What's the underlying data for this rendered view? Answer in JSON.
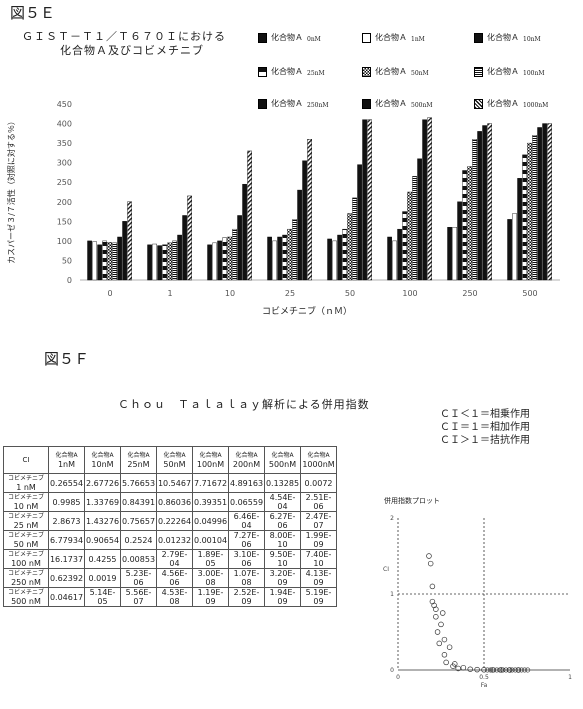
{
  "fig5e": {
    "label": "図５Ｅ",
    "title_line1": "ＧＩＳＴ－Ｔ１／Ｔ６７０Ｉにおける",
    "title_line2": "化合物Ａ及びコビメチニブ",
    "ylabel": "カスパーゼ３/７活性（対照に対する％）",
    "xlabel": "コビメチニブ（ｎＭ）"
  },
  "fig5f": {
    "label": "図５Ｆ",
    "title": "Ｃｈｏｕ　Ｔａｌａｌａｙ解析による併用指数",
    "legend": [
      "ＣＩ＜１＝相乗作用",
      "ＣＩ＝１＝相加作用",
      "ＣＩ＞１＝拮抗作用"
    ],
    "plot_title": "併用指数プロット",
    "plot_xlabel": "Fa",
    "plot_ylabel": "CI",
    "plot_ticks_x": [
      "0",
      "0.5",
      "1"
    ],
    "plot_ticks_y": [
      "0",
      "1",
      "2"
    ]
  },
  "table": {
    "corner": "CI",
    "col_drug": "化合物A",
    "cols": [
      "1nM",
      "10nM",
      "25nM",
      "50nM",
      "100nM",
      "200nM",
      "500nM",
      "1000nM"
    ],
    "row_drug": "コビメチニブ",
    "rows": [
      {
        "label": "1 nM",
        "values": [
          "0.26554",
          "2.67726",
          "5.76653",
          "10.5467",
          "7.71672",
          "4.89163",
          "0.13285",
          "0.0072"
        ]
      },
      {
        "label": "10 nM",
        "values": [
          "0.9985",
          "1.33769",
          "0.84391",
          "0.86036",
          "0.39351",
          "0.06559",
          "4.54E-04",
          "2.51E-06"
        ]
      },
      {
        "label": "25 nM",
        "values": [
          "2.8673",
          "1.43276",
          "0.75657",
          "0.22264",
          "0.04996",
          "6.46E-04",
          "6.27E-06",
          "2.47E-07"
        ]
      },
      {
        "label": "50 nM",
        "values": [
          "6.77934",
          "0.90654",
          "0.2524",
          "0.01232",
          "0.00104",
          "7.27E-06",
          "8.00E-10",
          "1.99E-09"
        ]
      },
      {
        "label": "100 nM",
        "values": [
          "16.1737",
          "0.4255",
          "0.00853",
          "2.79E-04",
          "1.89E-05",
          "3.10E-06",
          "9.50E-10",
          "7.40E-10"
        ]
      },
      {
        "label": "250 nM",
        "values": [
          "0.62392",
          "0.0019",
          "5.23E-06",
          "4.56E-06",
          "3.00E-08",
          "1.07E-08",
          "3.20E-09",
          "4.13E-09"
        ]
      },
      {
        "label": "500 nM",
        "values": [
          "0.04617",
          "5.14E-05",
          "5.56E-07",
          "4.53E-08",
          "1.19E-09",
          "2.52E-09",
          "1.94E-09",
          "5.19E-09"
        ]
      }
    ]
  },
  "chart_data": [
    {
      "type": "bar",
      "ylim": [
        0,
        450
      ],
      "yticks": [
        "0",
        "50",
        "100",
        "150",
        "200",
        "250",
        "300",
        "350",
        "400",
        "450"
      ],
      "categories": [
        "0",
        "1",
        "10",
        "25",
        "50",
        "100",
        "250",
        "500"
      ],
      "legend_placement": "top-right",
      "legend_prefix": "化合物Ａ",
      "series": [
        {
          "name": "0nM",
          "pattern": "solid",
          "values": [
            100,
            90,
            90,
            110,
            105,
            110,
            135,
            155
          ]
        },
        {
          "name": "1nM",
          "pattern": "hollow",
          "values": [
            98,
            92,
            95,
            100,
            100,
            100,
            135,
            170
          ]
        },
        {
          "name": "10nM",
          "pattern": "solid",
          "values": [
            90,
            88,
            100,
            110,
            115,
            130,
            200,
            260
          ]
        },
        {
          "name": "25nM",
          "pattern": "half",
          "values": [
            100,
            90,
            108,
            115,
            130,
            175,
            280,
            320
          ]
        },
        {
          "name": "50nM",
          "pattern": "check",
          "values": [
            96,
            95,
            110,
            130,
            170,
            225,
            290,
            350
          ]
        },
        {
          "name": "100nM",
          "pattern": "hstripe",
          "values": [
            95,
            100,
            130,
            155,
            210,
            265,
            360,
            370
          ]
        },
        {
          "name": "250nM",
          "pattern": "solid",
          "values": [
            110,
            115,
            165,
            230,
            295,
            310,
            380,
            390
          ]
        },
        {
          "name": "500nM",
          "pattern": "solid",
          "values": [
            150,
            165,
            245,
            305,
            410,
            410,
            395,
            400
          ]
        },
        {
          "name": "1000nM",
          "pattern": "diag",
          "values": [
            200,
            215,
            330,
            360,
            410,
            415,
            400,
            400
          ]
        }
      ]
    },
    {
      "type": "scatter",
      "title": "併用指数プロット",
      "xlabel": "Fa",
      "ylabel": "CI",
      "xlim": [
        0,
        1
      ],
      "ylim": [
        0,
        2
      ],
      "x": [
        0.18,
        0.19,
        0.2,
        0.2,
        0.21,
        0.22,
        0.22,
        0.23,
        0.24,
        0.25,
        0.26,
        0.27,
        0.27,
        0.28,
        0.3,
        0.32,
        0.33,
        0.35,
        0.38,
        0.42,
        0.46,
        0.5,
        0.55,
        0.6,
        0.65,
        0.7
      ],
      "y": [
        1.5,
        1.4,
        1.1,
        0.9,
        0.85,
        0.8,
        0.7,
        0.5,
        0.35,
        0.6,
        0.75,
        0.2,
        0.4,
        0.1,
        0.3,
        0.05,
        0.08,
        0.02,
        0.03,
        0.01,
        0.005,
        0.003,
        0.002,
        0.001,
        0.0005,
        0.0002
      ]
    }
  ]
}
